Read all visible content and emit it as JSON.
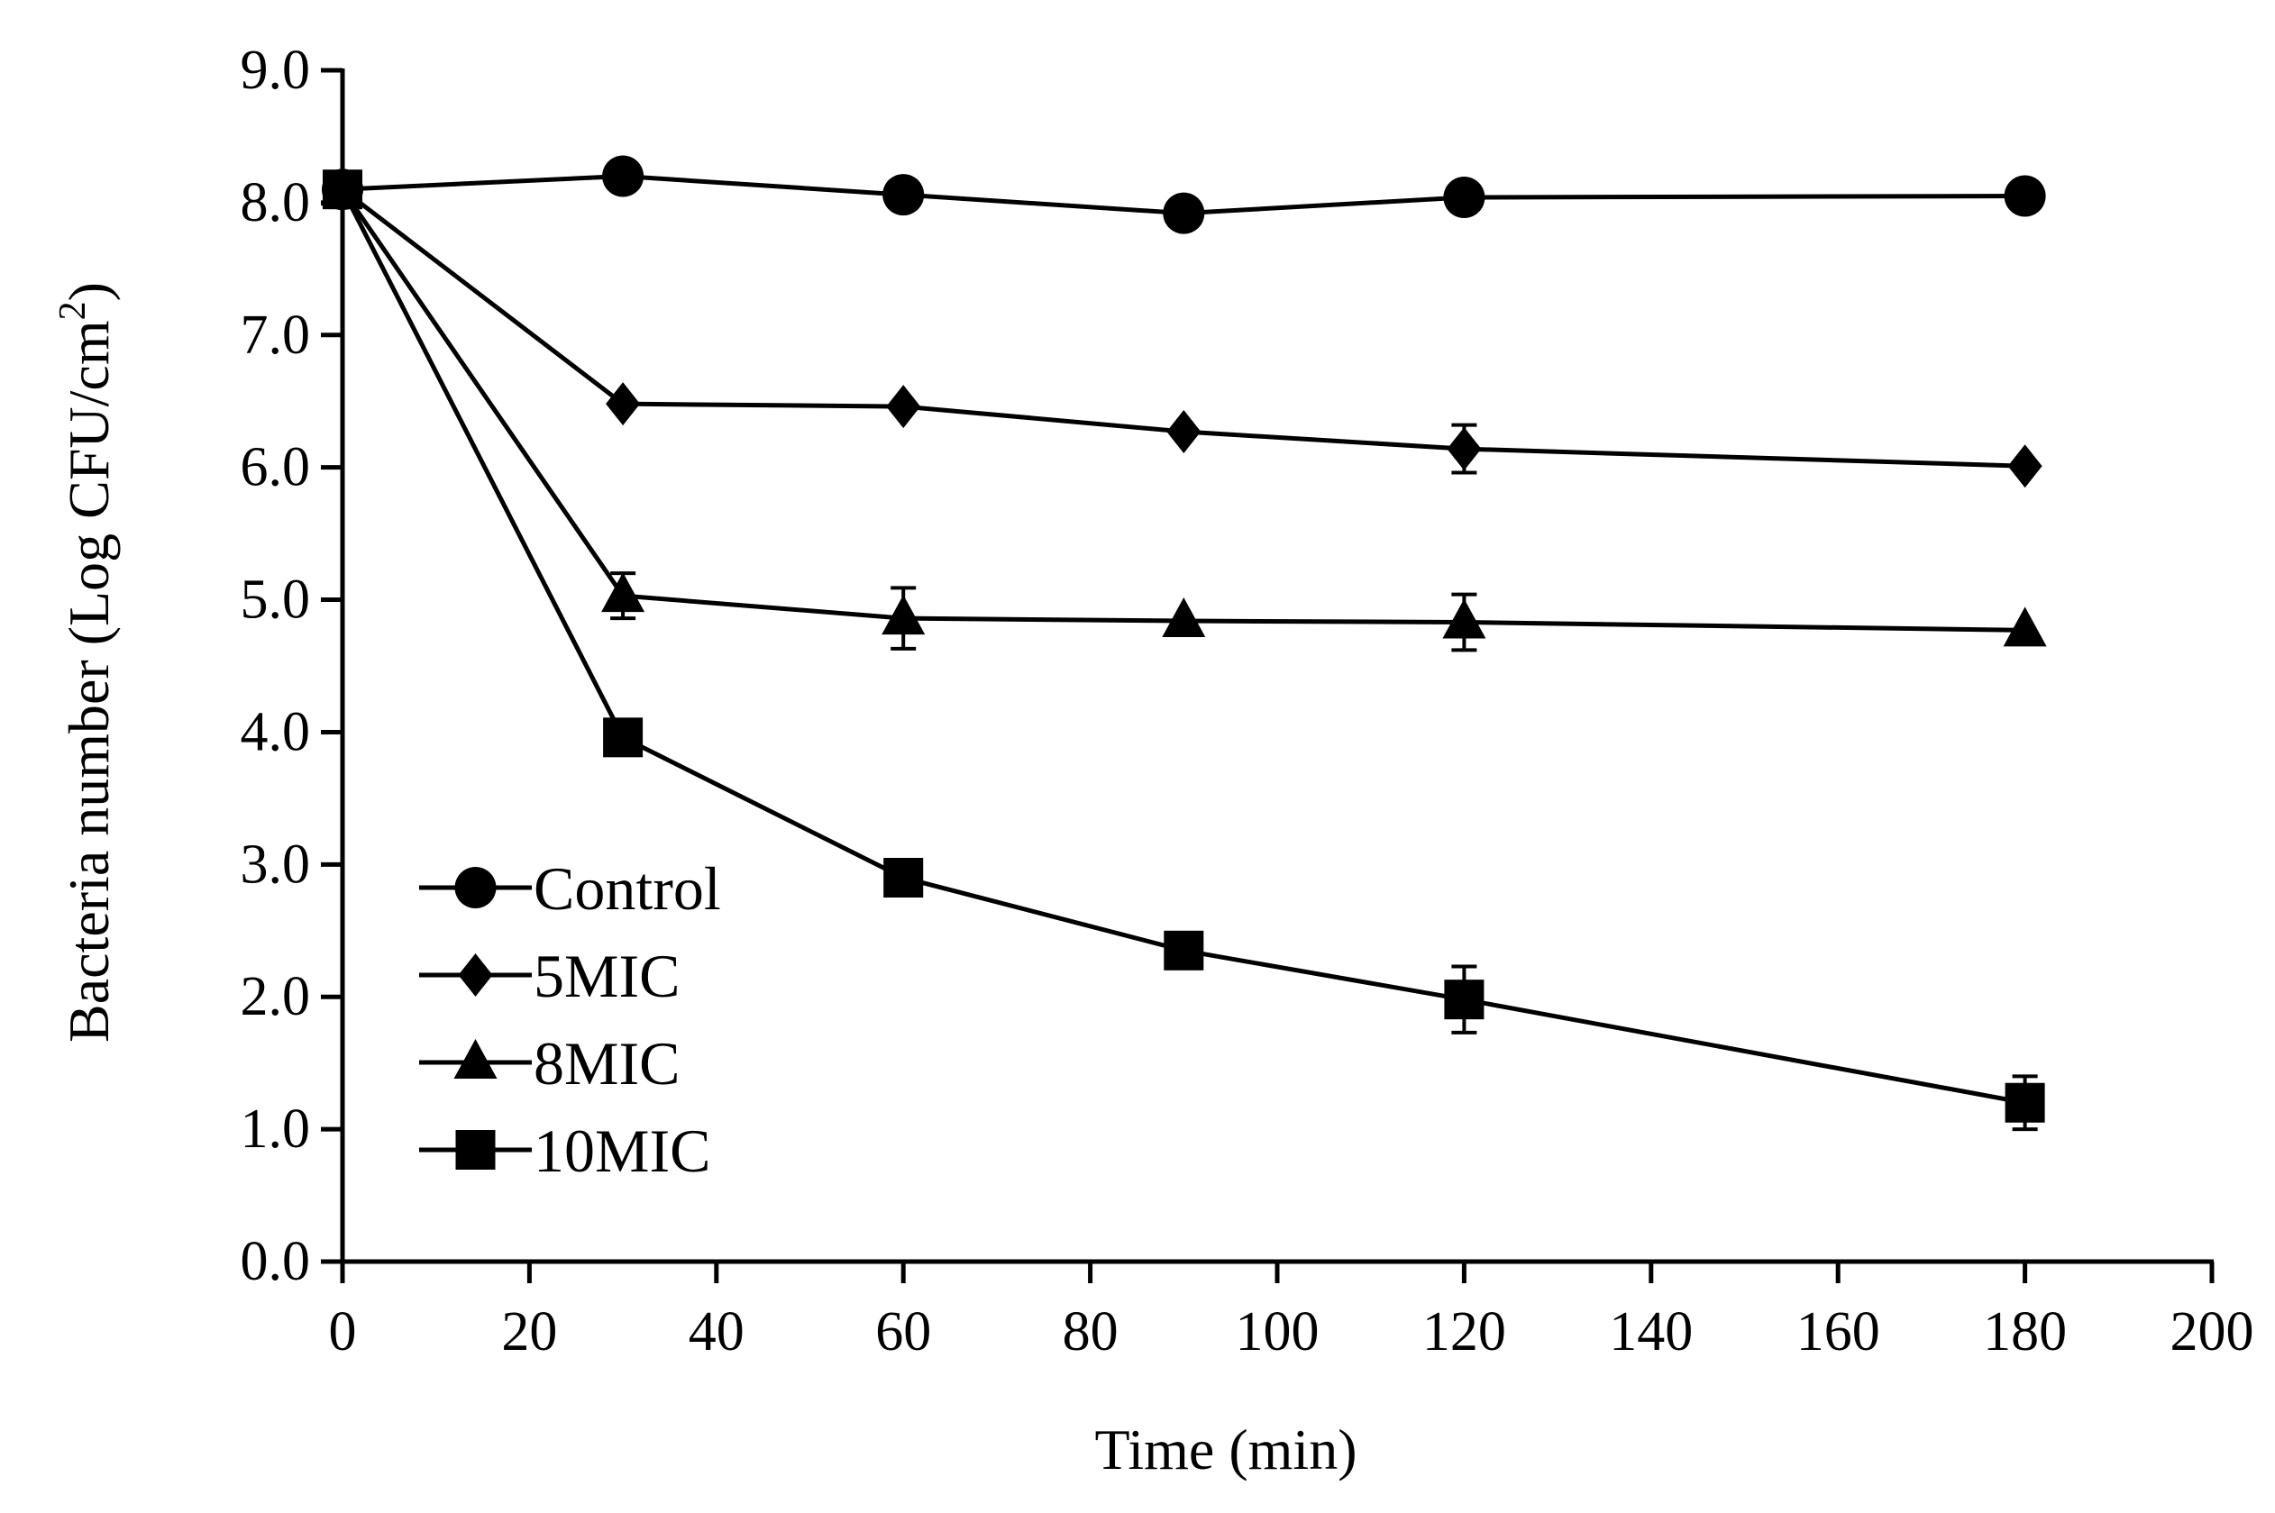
{
  "chart_data": {
    "type": "line",
    "title": "",
    "xlabel": "Time (min)",
    "ylabel_main": "Bacteria number (Log CFU/cm",
    "ylabel_sup": "2",
    "ylabel_close": ")",
    "xlim": [
      0,
      200
    ],
    "ylim": [
      0,
      9
    ],
    "x_ticks": [
      0,
      20,
      40,
      60,
      80,
      100,
      120,
      140,
      160,
      180,
      200
    ],
    "x_tick_labels": [
      "0",
      "20",
      "40",
      "60",
      "80",
      "100",
      "120",
      "140",
      "160",
      "180",
      "200"
    ],
    "y_ticks": [
      0,
      1,
      2,
      3,
      4,
      5,
      6,
      7,
      8,
      9
    ],
    "y_tick_labels": [
      "0.0",
      "1.0",
      "2.0",
      "3.0",
      "4.0",
      "5.0",
      "6.0",
      "7.0",
      "8.0",
      "9.0"
    ],
    "grid": false,
    "legend_position": "bottom-left",
    "x": [
      0,
      30,
      60,
      90,
      120,
      180
    ],
    "series": [
      {
        "name": "Control",
        "marker": "circle",
        "values": [
          8.1,
          8.2,
          8.06,
          7.92,
          8.04,
          8.05
        ],
        "errors": [
          0,
          0,
          0,
          0,
          0,
          0
        ]
      },
      {
        "name": "5MIC",
        "marker": "diamond",
        "values": [
          8.1,
          6.48,
          6.46,
          6.27,
          6.14,
          6.01
        ],
        "errors": [
          0,
          0,
          0,
          0,
          0.18,
          0
        ]
      },
      {
        "name": "8MIC",
        "marker": "triangle",
        "values": [
          8.1,
          5.03,
          4.86,
          4.84,
          4.83,
          4.77
        ],
        "errors": [
          0,
          0.17,
          0.23,
          0,
          0.21,
          0
        ]
      },
      {
        "name": "10MIC",
        "marker": "square",
        "values": [
          8.1,
          3.96,
          2.9,
          2.35,
          1.98,
          1.2
        ],
        "errors": [
          0,
          0,
          0,
          0,
          0.25,
          0.2
        ]
      }
    ],
    "colors": {
      "line": "#000000",
      "marker": "#000000"
    }
  }
}
